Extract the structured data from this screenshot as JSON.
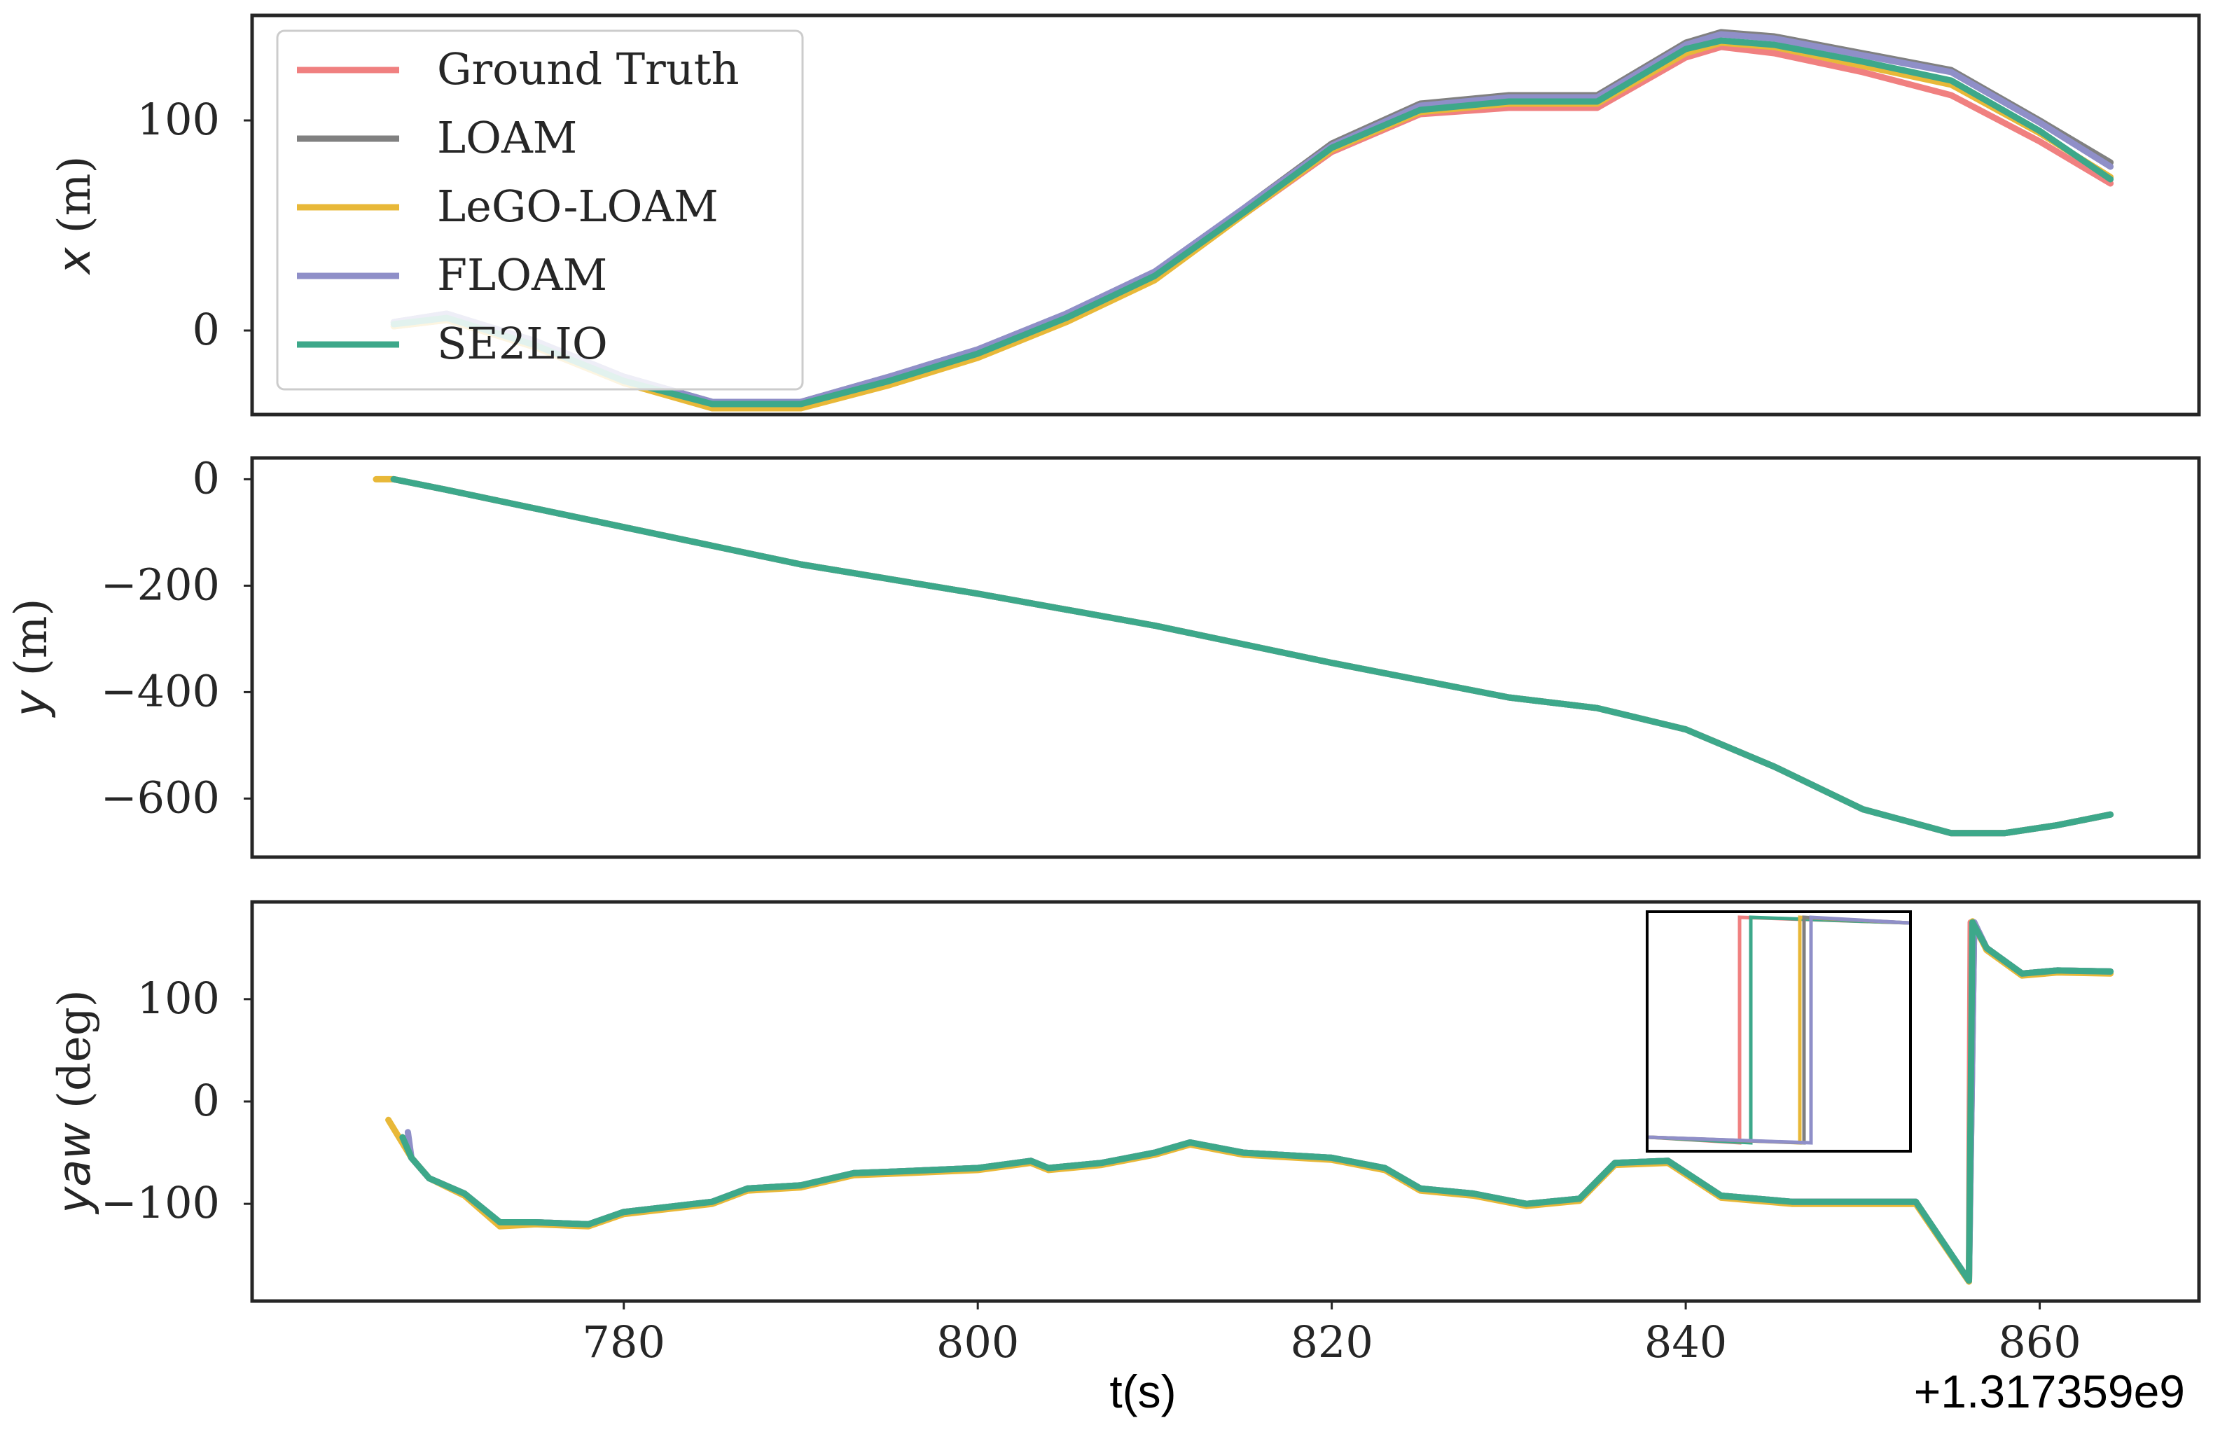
{
  "colors": {
    "ground_truth": "#f08080",
    "loam": "#808080",
    "lego_loam": "#e8b838",
    "floam": "#8f8fc8",
    "se2lio": "#3da88a"
  },
  "chart_data": [
    {
      "type": "line",
      "panel": "x",
      "ylabel_var": "x",
      "ylabel_unit": " (m)",
      "ylim": [
        -40,
        150
      ],
      "yticks": [
        {
          "v": 0,
          "label": "0"
        },
        {
          "v": 100,
          "label": "100"
        }
      ],
      "xlim": [
        759,
        869
      ],
      "grid": false,
      "legend": {
        "placement": "top-left",
        "entries": [
          {
            "name": "Ground Truth",
            "color_key": "ground_truth"
          },
          {
            "name": "LOAM",
            "color_key": "loam"
          },
          {
            "name": "LeGO-LOAM",
            "color_key": "lego_loam"
          },
          {
            "name": "FLOAM",
            "color_key": "floam"
          },
          {
            "name": "SE2LIO",
            "color_key": "se2lio"
          }
        ]
      },
      "series": [
        {
          "name": "Ground Truth",
          "color_key": "ground_truth",
          "x": [
            767,
            770,
            775,
            780,
            785,
            790,
            795,
            800,
            805,
            810,
            815,
            820,
            825,
            830,
            835,
            840,
            842,
            845,
            850,
            855,
            860,
            864
          ],
          "y": [
            2,
            5,
            -8,
            -25,
            -36,
            -36,
            -25,
            -12,
            5,
            25,
            55,
            85,
            103,
            106,
            106,
            130,
            135,
            132,
            123,
            112,
            90,
            70
          ]
        },
        {
          "name": "LOAM",
          "color_key": "loam",
          "x": [
            767,
            770,
            775,
            780,
            785,
            790,
            795,
            800,
            805,
            810,
            815,
            820,
            825,
            830,
            835,
            840,
            842,
            845,
            850,
            855,
            860,
            864
          ],
          "y": [
            4,
            8,
            -5,
            -22,
            -34,
            -34,
            -22,
            -9,
            8,
            28,
            58,
            89,
            108,
            112,
            112,
            137,
            142,
            140,
            132,
            124,
            100,
            80
          ]
        },
        {
          "name": "LeGO-LOAM",
          "color_key": "lego_loam",
          "x": [
            767,
            770,
            775,
            780,
            785,
            790,
            795,
            800,
            805,
            810,
            815,
            820,
            825,
            830,
            835,
            840,
            842,
            845,
            850,
            855,
            860,
            864
          ],
          "y": [
            2,
            5,
            -8,
            -25,
            -37,
            -37,
            -26,
            -13,
            4,
            24,
            55,
            86,
            104,
            108,
            108,
            132,
            137,
            135,
            126,
            117,
            94,
            73
          ]
        },
        {
          "name": "FLOAM",
          "color_key": "floam",
          "x": [
            767,
            770,
            775,
            780,
            785,
            790,
            795,
            800,
            805,
            810,
            815,
            820,
            825,
            830,
            835,
            840,
            842,
            845,
            850,
            855,
            860,
            864
          ],
          "y": [
            4,
            8,
            -5,
            -22,
            -34,
            -34,
            -22,
            -9,
            8,
            28,
            58,
            88,
            107,
            111,
            111,
            136,
            141,
            139,
            131,
            123,
            99,
            78
          ]
        },
        {
          "name": "SE2LIO",
          "color_key": "se2lio",
          "x": [
            767,
            770,
            775,
            780,
            785,
            790,
            795,
            800,
            805,
            810,
            815,
            820,
            825,
            830,
            835,
            840,
            842,
            845,
            850,
            855,
            860,
            864
          ],
          "y": [
            3,
            6,
            -7,
            -24,
            -35,
            -35,
            -24,
            -11,
            6,
            26,
            56,
            87,
            105,
            109,
            109,
            134,
            138,
            136,
            128,
            119,
            95,
            72
          ]
        }
      ]
    },
    {
      "type": "line",
      "panel": "y",
      "ylabel_var": "y",
      "ylabel_unit": " (m)",
      "ylim": [
        -710,
        40
      ],
      "yticks": [
        {
          "v": 0,
          "label": "0"
        },
        {
          "v": -200,
          "label": "−200"
        },
        {
          "v": -400,
          "label": "−400"
        },
        {
          "v": -600,
          "label": "−600"
        }
      ],
      "xlim": [
        759,
        869
      ],
      "grid": false,
      "series": [
        {
          "name": "Ground Truth",
          "color_key": "ground_truth",
          "x": [
            767,
            770,
            780,
            790,
            800,
            810,
            820,
            830,
            835,
            840,
            845,
            850,
            855,
            858,
            861,
            864
          ],
          "y": [
            0,
            -20,
            -90,
            -160,
            -215,
            -275,
            -345,
            -410,
            -430,
            -470,
            -540,
            -620,
            -665,
            -665,
            -650,
            -630
          ]
        },
        {
          "name": "LOAM",
          "color_key": "loam",
          "x": [
            767,
            770,
            780,
            790,
            800,
            810,
            820,
            830,
            835,
            840,
            845,
            850,
            855,
            858,
            861,
            864
          ],
          "y": [
            0,
            -20,
            -90,
            -160,
            -215,
            -275,
            -345,
            -410,
            -430,
            -470,
            -540,
            -620,
            -665,
            -665,
            -650,
            -630
          ]
        },
        {
          "name": "LeGO-LOAM",
          "color_key": "lego_loam",
          "x": [
            766,
            767,
            770,
            780,
            790,
            800,
            810,
            820,
            830,
            835,
            840,
            845,
            850,
            855,
            858,
            861,
            864
          ],
          "y": [
            0,
            0,
            -20,
            -90,
            -160,
            -215,
            -275,
            -345,
            -410,
            -430,
            -470,
            -540,
            -620,
            -665,
            -665,
            -650,
            -630
          ]
        },
        {
          "name": "FLOAM",
          "color_key": "floam",
          "x": [
            767,
            770,
            780,
            790,
            800,
            810,
            820,
            830,
            835,
            840,
            845,
            850,
            855,
            858,
            861,
            864
          ],
          "y": [
            0,
            -20,
            -90,
            -160,
            -215,
            -275,
            -345,
            -410,
            -430,
            -470,
            -540,
            -620,
            -665,
            -665,
            -650,
            -630
          ]
        },
        {
          "name": "SE2LIO",
          "color_key": "se2lio",
          "x": [
            767,
            770,
            780,
            790,
            800,
            810,
            820,
            830,
            835,
            840,
            845,
            850,
            855,
            858,
            861,
            864
          ],
          "y": [
            0,
            -20,
            -90,
            -160,
            -215,
            -275,
            -345,
            -410,
            -430,
            -470,
            -540,
            -620,
            -665,
            -665,
            -650,
            -630
          ]
        }
      ]
    },
    {
      "type": "line",
      "panel": "yaw",
      "ylabel_var": "yaw",
      "ylabel_unit": " (deg)",
      "ylim": [
        -195,
        195
      ],
      "yticks": [
        {
          "v": 100,
          "label": "100"
        },
        {
          "v": 0,
          "label": "0"
        },
        {
          "v": -100,
          "label": "−100"
        }
      ],
      "xlim": [
        759,
        869
      ],
      "xticks": [
        {
          "v": 780,
          "label": "780"
        },
        {
          "v": 800,
          "label": "800"
        },
        {
          "v": 820,
          "label": "820"
        },
        {
          "v": 840,
          "label": "840"
        },
        {
          "v": 860,
          "label": "860"
        }
      ],
      "xlabel": "t(s)",
      "x_offset_label": "+1.317359e9",
      "grid": false,
      "inset": {
        "description_free": true
      },
      "series": [
        {
          "name": "Ground Truth",
          "color_key": "ground_truth",
          "x": [
            767.5,
            768,
            769,
            771,
            773,
            775,
            778,
            780,
            785,
            787,
            790,
            793,
            796,
            800,
            803,
            804,
            807,
            810,
            812,
            815,
            820,
            823,
            825,
            828,
            831,
            834,
            836,
            839,
            842,
            846,
            850,
            853,
            856,
            856.1,
            857,
            859,
            861,
            864
          ],
          "y": [
            -35,
            -55,
            -75,
            -90,
            -118,
            -118,
            -120,
            -108,
            -98,
            -85,
            -82,
            -70,
            -68,
            -65,
            -58,
            -65,
            -60,
            -50,
            -40,
            -50,
            -55,
            -65,
            -85,
            -90,
            -100,
            -95,
            -60,
            -58,
            -92,
            -98,
            -98,
            -98,
            -175,
            175,
            150,
            125,
            128,
            127
          ]
        },
        {
          "name": "LOAM",
          "color_key": "loam",
          "x": [
            767.5,
            768,
            769,
            771,
            773,
            775,
            778,
            780,
            785,
            787,
            790,
            793,
            796,
            800,
            803,
            804,
            807,
            810,
            812,
            815,
            820,
            823,
            825,
            828,
            831,
            834,
            836,
            839,
            842,
            846,
            850,
            853,
            856,
            856.3,
            857,
            859,
            861,
            864
          ],
          "y": [
            -35,
            -55,
            -75,
            -90,
            -118,
            -118,
            -120,
            -108,
            -98,
            -85,
            -82,
            -70,
            -68,
            -65,
            -58,
            -65,
            -60,
            -50,
            -40,
            -50,
            -55,
            -65,
            -85,
            -90,
            -100,
            -95,
            -60,
            -58,
            -92,
            -98,
            -98,
            -98,
            -175,
            175,
            150,
            125,
            128,
            127
          ]
        },
        {
          "name": "LeGO-LOAM",
          "color_key": "lego_loam",
          "x": [
            766.7,
            768,
            769,
            771,
            773,
            775,
            778,
            780,
            785,
            787,
            790,
            793,
            796,
            800,
            803,
            804,
            807,
            810,
            812,
            815,
            820,
            823,
            825,
            828,
            831,
            834,
            836,
            839,
            842,
            846,
            850,
            853,
            856,
            856.2,
            857,
            859,
            861,
            864
          ],
          "y": [
            -18,
            -55,
            -75,
            -92,
            -122,
            -120,
            -122,
            -110,
            -100,
            -87,
            -84,
            -72,
            -70,
            -67,
            -60,
            -67,
            -62,
            -52,
            -42,
            -52,
            -57,
            -67,
            -87,
            -92,
            -102,
            -97,
            -62,
            -60,
            -94,
            -100,
            -100,
            -100,
            -176,
            176,
            148,
            123,
            126,
            125
          ]
        },
        {
          "name": "FLOAM",
          "color_key": "floam",
          "x": [
            767.8,
            768,
            769,
            771,
            773,
            775,
            778,
            780,
            785,
            787,
            790,
            793,
            796,
            800,
            803,
            804,
            807,
            810,
            812,
            815,
            820,
            823,
            825,
            828,
            831,
            834,
            836,
            839,
            842,
            846,
            850,
            853,
            856,
            856.3,
            857,
            859,
            861,
            864
          ],
          "y": [
            -30,
            -55,
            -75,
            -90,
            -118,
            -118,
            -120,
            -108,
            -98,
            -85,
            -82,
            -70,
            -68,
            -65,
            -58,
            -65,
            -60,
            -50,
            -40,
            -50,
            -55,
            -65,
            -85,
            -90,
            -100,
            -95,
            -60,
            -58,
            -92,
            -98,
            -98,
            -98,
            -175,
            175,
            150,
            125,
            128,
            127
          ]
        },
        {
          "name": "SE2LIO",
          "color_key": "se2lio",
          "x": [
            767.5,
            768,
            769,
            771,
            773,
            775,
            778,
            780,
            785,
            787,
            790,
            793,
            796,
            800,
            803,
            804,
            807,
            810,
            812,
            815,
            820,
            823,
            825,
            828,
            831,
            834,
            836,
            839,
            842,
            846,
            850,
            853,
            856,
            856.2,
            857,
            859,
            861,
            864
          ],
          "y": [
            -35,
            -55,
            -75,
            -90,
            -118,
            -118,
            -120,
            -108,
            -98,
            -85,
            -82,
            -70,
            -68,
            -65,
            -58,
            -65,
            -60,
            -50,
            -40,
            -50,
            -55,
            -65,
            -85,
            -90,
            -100,
            -95,
            -60,
            -58,
            -92,
            -98,
            -98,
            -98,
            -175,
            175,
            150,
            125,
            128,
            127
          ]
        }
      ]
    }
  ]
}
